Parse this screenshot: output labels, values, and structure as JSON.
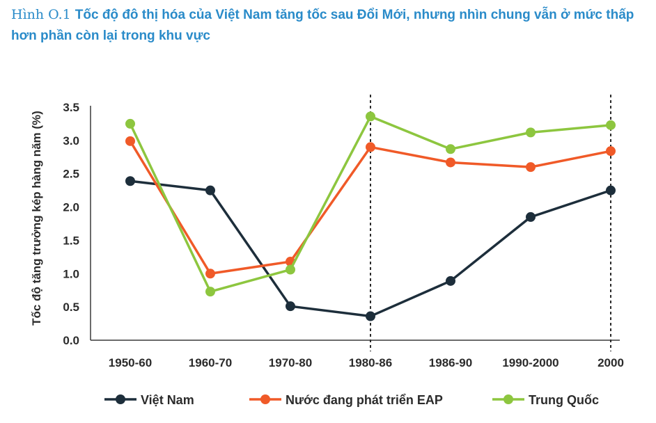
{
  "title": {
    "figure_number": "Hình O.1",
    "text": "Tốc độ đô thị hóa của Việt Nam tăng tốc sau Đổi Mới, nhưng nhìn chung vẫn ở mức thấp hơn phần còn lại trong khu vực"
  },
  "chart_data": {
    "type": "line",
    "ylabel": "Tốc độ tăng trưởng kép hàng năm (%)",
    "xlabel": "",
    "ylim": [
      0,
      3.5
    ],
    "yticks": [
      "0.0",
      "0.5",
      "1.0",
      "1.5",
      "2.0",
      "2.5",
      "3.0",
      "3.5"
    ],
    "categories": [
      "1950-60",
      "1960-70",
      "1970-80",
      "1980-86",
      "1986-90",
      "1990-2000",
      "2000"
    ],
    "vertical_dashed_lines_at": [
      "1980-86",
      "2000"
    ],
    "grid": false,
    "legend_position": "bottom",
    "series": [
      {
        "name": "Việt Nam",
        "color": "#1d2e3b",
        "values": [
          2.39,
          2.25,
          0.51,
          0.36,
          0.89,
          1.85,
          2.25
        ]
      },
      {
        "name": "Nước đang phát triển EAP",
        "color": "#f05a28",
        "values": [
          2.99,
          1.0,
          1.18,
          2.9,
          2.67,
          2.6,
          2.84
        ]
      },
      {
        "name": "Trung Quốc",
        "color": "#8dc63f",
        "values": [
          3.25,
          0.73,
          1.06,
          3.36,
          2.87,
          3.12,
          3.23
        ]
      }
    ]
  }
}
